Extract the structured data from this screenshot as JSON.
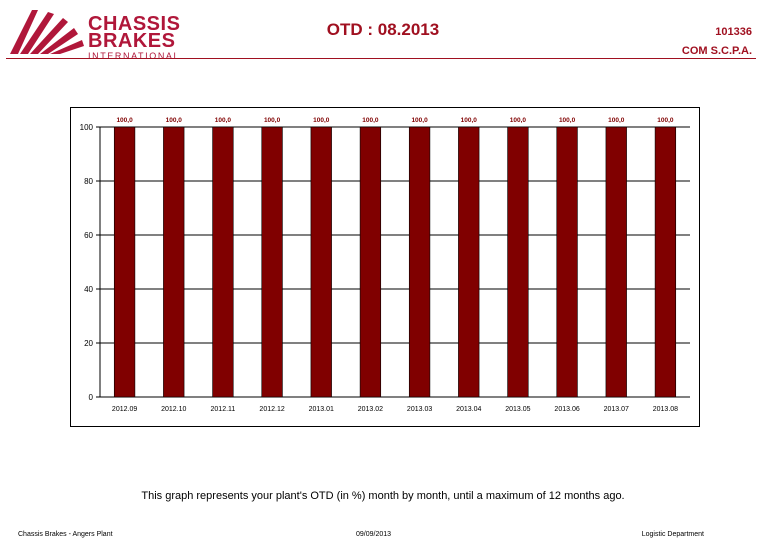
{
  "header": {
    "logo_line1": "CHASSIS",
    "logo_line2": "BRAKES",
    "logo_line3": "INTERNATIONAL",
    "title": "OTD : 08.2013",
    "doc_code": "101336",
    "company": "COM S.C.P.A."
  },
  "colors": {
    "brand": "#b0173a",
    "bar": "#800000",
    "title": "#a01020"
  },
  "chart_data": {
    "type": "bar",
    "categories": [
      "2012.09",
      "2012.10",
      "2012.11",
      "2012.12",
      "2013.01",
      "2013.02",
      "2013.03",
      "2013.04",
      "2013.05",
      "2013.06",
      "2013.07",
      "2013.08"
    ],
    "values": [
      100,
      100,
      100,
      100,
      100,
      100,
      100,
      100,
      100,
      100,
      100,
      100
    ],
    "data_labels": [
      "100,0",
      "100,0",
      "100,0",
      "100,0",
      "100,0",
      "100,0",
      "100,0",
      "100,0",
      "100,0",
      "100,0",
      "100,0",
      "100,0"
    ],
    "ylim": [
      0,
      100
    ],
    "yticks": [
      0,
      20,
      40,
      60,
      80,
      100
    ],
    "grid": true,
    "title": "",
    "xlabel": "",
    "ylabel": ""
  },
  "caption": "This graph represents your plant's OTD (in %) month by month, until a maximum of 12 months ago.",
  "footer": {
    "left": "Chassis Brakes - Angers Plant",
    "center": "09/09/2013",
    "right": "Logistic Department"
  }
}
